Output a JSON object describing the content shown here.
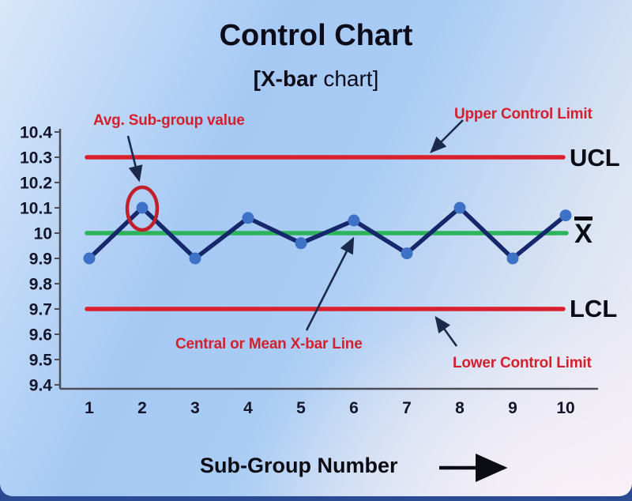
{
  "title": "Control Chart",
  "subtitle": {
    "bold": "[X-bar",
    "regular": " chart]"
  },
  "annotations": {
    "avg_subgroup": "Avg. Sub-group value",
    "upper_control": "Upper Control Limit",
    "central_line": "Central or Mean X-bar Line",
    "lower_control": "Lower Control Limit",
    "ucl_label": "UCL",
    "xbar_label": "X",
    "lcl_label": "LCL"
  },
  "x_axis_title": "Sub-Group Number",
  "colors": {
    "control_limit_line": "#d8202e",
    "center_line": "#2db35b",
    "series_line": "#16286b",
    "marker": "#3e72c6",
    "highlight_circle": "#c11f2b",
    "arrow": "#1b2a4a",
    "axis": "#4d4d58",
    "tick_text": "#14142a",
    "red_text": "#d3202e",
    "black_text": "#0b0b14"
  },
  "chart_data": {
    "type": "line",
    "title": "Control Chart [X-bar chart]",
    "xlabel": "Sub-Group Number",
    "ylabel": "",
    "x": [
      1,
      2,
      3,
      4,
      5,
      6,
      7,
      8,
      9,
      10
    ],
    "x_ticks": [
      "1",
      "2",
      "3",
      "4",
      "5",
      "6",
      "7",
      "8",
      "9",
      "10"
    ],
    "series": [
      {
        "name": "Avg. Sub-group value",
        "values": [
          9.9,
          10.1,
          9.9,
          10.06,
          9.96,
          10.05,
          9.92,
          10.1,
          9.9,
          10.07
        ]
      }
    ],
    "center_line": 10.0,
    "ucl": 10.3,
    "lcl": 9.7,
    "ylim": [
      9.4,
      10.4
    ],
    "y_ticks": [
      "10.4",
      "10.3",
      "10.2",
      "10.1",
      "10",
      "9.9",
      "9.8",
      "9.7",
      "9.6",
      "9.5",
      "9.4"
    ],
    "highlighted_point_x": 2,
    "grid": false,
    "legend_position": "none"
  }
}
